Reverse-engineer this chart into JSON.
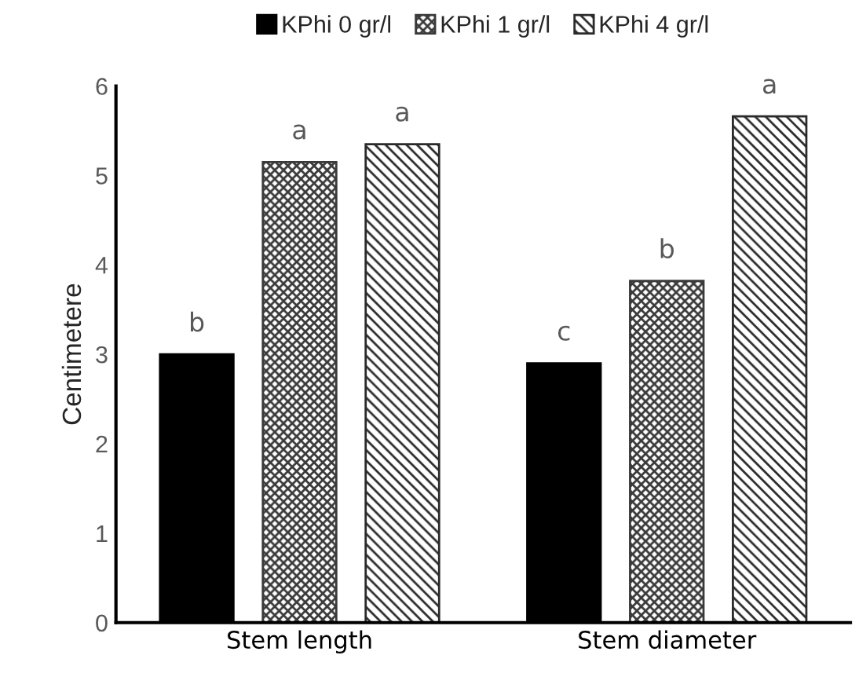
{
  "chart_data": {
    "type": "bar",
    "ylabel": "Centimetere",
    "categories": [
      "Stem length",
      "Stem diameter"
    ],
    "series": [
      {
        "name": "KPhi 0 gr/l",
        "color": "#000000",
        "values": [
          3.0,
          2.9
        ]
      },
      {
        "name": "KPhi 1 gr/l",
        "color": "#3a3a3a",
        "values": [
          5.15,
          3.82
        ]
      },
      {
        "name": "KPhi 4 gr/l",
        "color": "#2a2a2a",
        "values": [
          5.35,
          5.66
        ]
      }
    ],
    "ylim": [
      0,
      6
    ],
    "yticks": [
      0,
      1,
      2,
      3,
      4,
      5,
      6
    ],
    "legend": "top",
    "annotations": [
      "b",
      "a",
      "a",
      "c",
      "b",
      "a"
    ]
  }
}
